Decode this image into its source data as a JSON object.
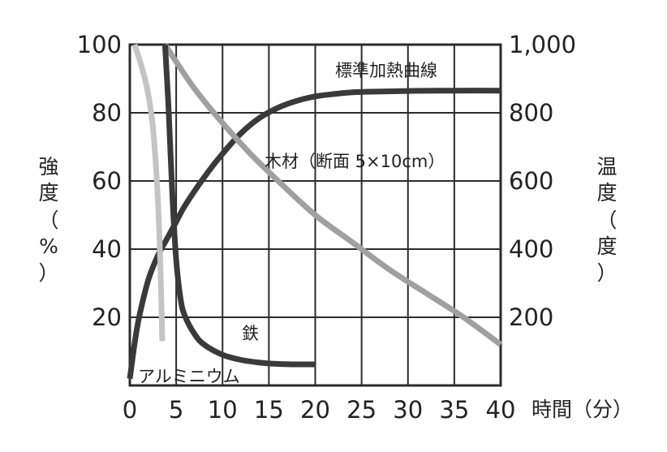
{
  "chart_data": {
    "type": "line",
    "xlabel": "時間（分）",
    "ylabel_left": "強度（%）",
    "ylabel_right": "温度（度）",
    "xlim": [
      0,
      40
    ],
    "ylim_left": [
      0,
      100
    ],
    "ylim_right": [
      0,
      1000
    ],
    "x_ticks": [
      "0",
      "5",
      "10",
      "15",
      "20",
      "25",
      "30",
      "35",
      "40"
    ],
    "y_left_ticks": [
      "20",
      "40",
      "60",
      "80",
      "100"
    ],
    "y_right_ticks": [
      "200",
      "400",
      "600",
      "800",
      "1,000"
    ],
    "grid": true,
    "series": [
      {
        "name": "標準加熱曲線",
        "axis": "right",
        "color": "#3a3a3a",
        "x": [
          0,
          0.5,
          1,
          2,
          3,
          4,
          5,
          6,
          8,
          10,
          12,
          14,
          16,
          18,
          20,
          22,
          24,
          26,
          30,
          35,
          40
        ],
        "y": [
          20,
          120,
          200,
          310,
          380,
          430,
          480,
          530,
          610,
          680,
          740,
          785,
          815,
          835,
          848,
          855,
          860,
          862,
          864,
          865,
          865
        ]
      },
      {
        "name": "木材（断面 5×10cm）",
        "axis": "left",
        "color": "#a0a0a0",
        "x": [
          3.8,
          5,
          7,
          10,
          13,
          16,
          20,
          24,
          28,
          32,
          36,
          40
        ],
        "y": [
          100,
          95,
          87,
          77,
          68,
          60,
          50,
          42,
          34,
          27,
          20,
          12
        ]
      },
      {
        "name": "鉄",
        "axis": "left",
        "color": "#3a3a3a",
        "x": [
          3.8,
          4.2,
          4.6,
          5,
          5.5,
          6,
          7,
          8,
          10,
          12,
          14,
          16,
          18,
          20
        ],
        "y": [
          100,
          80,
          55,
          37,
          25,
          20,
          15,
          12,
          9,
          7.5,
          6.7,
          6.3,
          6.2,
          6.2
        ]
      },
      {
        "name": "アルミニウム",
        "axis": "left",
        "color": "#c4c4c4",
        "x": [
          0.5,
          1,
          1.8,
          2.4,
          2.8,
          3.1,
          3.3,
          3.5
        ],
        "y": [
          100,
          96,
          88,
          78,
          65,
          50,
          35,
          13
        ]
      }
    ],
    "labels": {
      "standard": "標準加熱曲線",
      "wood": "木材（断面 5×10cm）",
      "iron": "鉄",
      "aluminum": "アルミニウム"
    }
  }
}
